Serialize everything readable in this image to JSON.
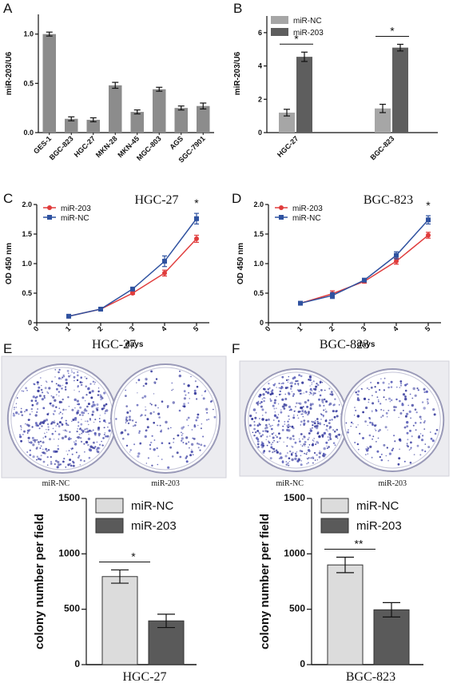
{
  "panels": {
    "A": {
      "letter": "A",
      "chart_data": {
        "type": "bar",
        "categories": [
          "GES-1",
          "BGC-823",
          "HGC-27",
          "MKN-28",
          "MKN-45",
          "MGC-803",
          "AGS",
          "SGC-7901"
        ],
        "values": [
          1.0,
          0.14,
          0.13,
          0.48,
          0.21,
          0.44,
          0.25,
          0.27
        ],
        "errors": [
          0.02,
          0.02,
          0.02,
          0.03,
          0.02,
          0.02,
          0.02,
          0.03
        ],
        "title": "",
        "xlabel": "",
        "ylabel": "miR-203/U6",
        "ylim": [
          0,
          1.2
        ],
        "yticks": [
          0.0,
          0.5,
          1.0
        ],
        "ytick_labels": [
          "0.0",
          "0.5",
          "1.0"
        ],
        "color": "#8c8c8c"
      }
    },
    "B": {
      "letter": "B",
      "chart_data": {
        "type": "bar",
        "categories": [
          "HGC-27",
          "BGC-823"
        ],
        "series": [
          {
            "name": "miR-NC",
            "values": [
              1.2,
              1.45
            ],
            "errors": [
              0.2,
              0.25
            ],
            "color": "#a6a6a6"
          },
          {
            "name": "miR-203",
            "values": [
              4.55,
              5.1
            ],
            "errors": [
              0.28,
              0.2
            ],
            "color": "#5e5e5e"
          }
        ],
        "title": "",
        "xlabel": "",
        "ylabel": "miR-203/U6",
        "ylim": [
          0,
          7
        ],
        "yticks": [
          0,
          2,
          4,
          6
        ],
        "ytick_labels": [
          "0",
          "2",
          "4",
          "6"
        ],
        "significance": [
          "*",
          "*"
        ],
        "legend": "top-left"
      }
    },
    "C": {
      "letter": "C",
      "chart_data": {
        "type": "line",
        "title": "HGC-27",
        "x": [
          1,
          2,
          3,
          4,
          5
        ],
        "series": [
          {
            "name": "miR-203",
            "values": [
              0.11,
              0.23,
              0.5,
              0.84,
              1.42
            ],
            "errors": [
              0.01,
              0.01,
              0.02,
              0.05,
              0.06
            ],
            "color": "#e03c3c",
            "marker": "circle"
          },
          {
            "name": "miR-NC",
            "values": [
              0.11,
              0.23,
              0.57,
              1.04,
              1.76
            ],
            "errors": [
              0.01,
              0.01,
              0.02,
              0.09,
              0.09
            ],
            "color": "#2f52a0",
            "marker": "square"
          }
        ],
        "xlabel": "days",
        "ylabel": "OD 450 nm",
        "xlim": [
          0,
          5.4
        ],
        "xticks": [
          0,
          1,
          2,
          3,
          4,
          5
        ],
        "xtick_labels": [
          "0",
          "1",
          "2",
          "3",
          "4",
          "5"
        ],
        "ylim": [
          0,
          2.0
        ],
        "yticks": [
          0,
          0.5,
          1.0,
          1.5,
          2.0
        ],
        "ytick_labels": [
          "0",
          "0.5",
          "1.0",
          "1.5",
          "2.0"
        ],
        "significance": "*",
        "legend": "top-left"
      }
    },
    "D": {
      "letter": "D",
      "chart_data": {
        "type": "line",
        "title": "BGC-823",
        "x": [
          1,
          2,
          3,
          4,
          5
        ],
        "series": [
          {
            "name": "miR-203",
            "values": [
              0.33,
              0.49,
              0.7,
              1.04,
              1.48
            ],
            "errors": [
              0.02,
              0.05,
              0.03,
              0.05,
              0.05
            ],
            "color": "#e03c3c",
            "marker": "circle"
          },
          {
            "name": "miR-NC",
            "values": [
              0.33,
              0.46,
              0.72,
              1.14,
              1.74
            ],
            "errors": [
              0.02,
              0.05,
              0.03,
              0.06,
              0.07
            ],
            "color": "#2f52a0",
            "marker": "square"
          }
        ],
        "xlabel": "days",
        "ylabel": "OD 450 nm",
        "xlim": [
          0,
          5.4
        ],
        "xticks": [
          0,
          1,
          2,
          3,
          4,
          5
        ],
        "xtick_labels": [
          "0",
          "1",
          "2",
          "3",
          "4",
          "5"
        ],
        "ylim": [
          0,
          2.0
        ],
        "yticks": [
          0,
          0.5,
          1.0,
          1.5,
          2.0
        ],
        "ytick_labels": [
          "0",
          "0.5",
          "1.0",
          "1.5",
          "2.0"
        ],
        "significance": "*",
        "legend": "top-left"
      }
    },
    "E": {
      "letter": "E",
      "photo_title": "HGC-27",
      "dish_labels": [
        "miR-NC",
        "miR-203"
      ],
      "dish_colony_density": [
        0.85,
        0.35
      ],
      "chart_data": {
        "type": "bar",
        "categories": [
          "HGC-27"
        ],
        "series": [
          {
            "name": "miR-NC",
            "values": [
              795
            ],
            "errors": [
              60
            ],
            "color": "#dcdcdc"
          },
          {
            "name": "miR-203",
            "values": [
              395
            ],
            "errors": [
              60
            ],
            "color": "#5a5a5a"
          }
        ],
        "xlabel": "HGC-27",
        "ylabel": "colony number per field",
        "ylim": [
          0,
          1500
        ],
        "yticks": [
          0,
          500,
          1000,
          1500
        ],
        "ytick_labels": [
          "0",
          "500",
          "1000",
          "1500"
        ],
        "significance": "*",
        "legend": "top"
      }
    },
    "F": {
      "letter": "F",
      "photo_title": "BGC-823",
      "dish_labels": [
        "miR-NC",
        "miR-203"
      ],
      "dish_colony_density": [
        0.9,
        0.4
      ],
      "chart_data": {
        "type": "bar",
        "categories": [
          "BGC-823"
        ],
        "series": [
          {
            "name": "miR-NC",
            "values": [
              900
            ],
            "errors": [
              70
            ],
            "color": "#dcdcdc"
          },
          {
            "name": "miR-203",
            "values": [
              495
            ],
            "errors": [
              65
            ],
            "color": "#5a5a5a"
          }
        ],
        "xlabel": "BGC-823",
        "ylabel": "colony number per field",
        "ylim": [
          0,
          1500
        ],
        "yticks": [
          0,
          500,
          1000,
          1500
        ],
        "ytick_labels": [
          "0",
          "500",
          "1000",
          "1500"
        ],
        "significance": "**",
        "legend": "top"
      }
    }
  }
}
